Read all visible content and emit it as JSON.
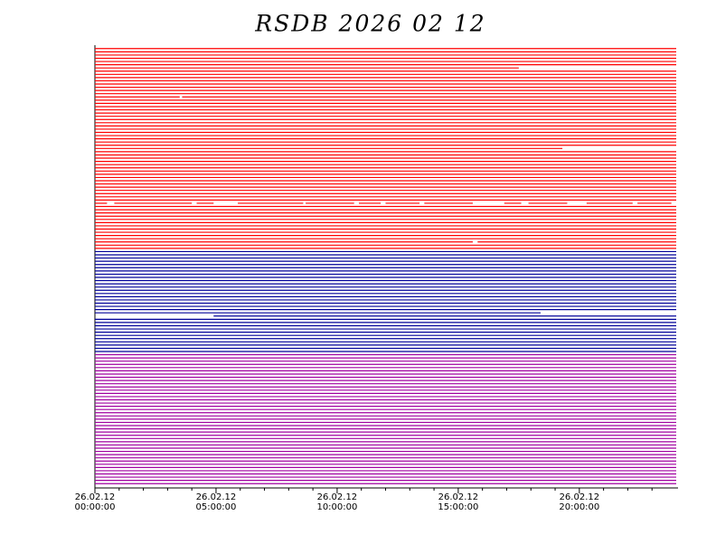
{
  "chart_data": {
    "type": "availability",
    "title": "RSDB  2026  02  12",
    "xlim": [
      0,
      24
    ],
    "xticks": [
      {
        "value": 0,
        "label": "26.02.12 00:00:00"
      },
      {
        "value": 5,
        "label": "26.02.12 05:00:00"
      },
      {
        "value": 10,
        "label": "26.02.12 10:00:00"
      },
      {
        "value": 15,
        "label": "26.02.12 15:00:00"
      },
      {
        "value": 20,
        "label": "26.02.12 20:00:00"
      }
    ],
    "xminorticks": [
      1,
      2,
      3,
      4,
      6,
      7,
      8,
      9,
      11,
      12,
      13,
      14,
      16,
      17,
      18,
      19,
      21,
      22,
      23
    ],
    "groups": [
      {
        "color": "#ff0000",
        "rows": [
          [
            [
              0,
              24
            ]
          ],
          [
            [
              0,
              24
            ]
          ],
          [
            [
              0,
              24
            ]
          ],
          [
            [
              0,
              24
            ]
          ],
          [
            [
              0,
              24
            ]
          ],
          [
            [
              0,
              24
            ]
          ],
          [
            [
              0,
              17.5
            ]
          ],
          [
            [
              0,
              24
            ]
          ],
          [
            [
              0,
              24
            ]
          ],
          [
            [
              0,
              24
            ]
          ],
          [
            [
              0,
              24
            ]
          ],
          [
            [
              0,
              24
            ]
          ],
          [
            [
              0,
              24
            ]
          ],
          [
            [
              0,
              24
            ]
          ],
          [
            [
              0,
              24
            ]
          ],
          [
            [
              0,
              3.5
            ],
            [
              3.6,
              24
            ]
          ],
          [
            [
              0,
              24
            ]
          ],
          [
            [
              0,
              24
            ]
          ],
          [
            [
              0,
              24
            ]
          ],
          [
            [
              0,
              24
            ]
          ],
          [
            [
              0,
              24
            ]
          ],
          [
            [
              0,
              24
            ]
          ],
          [
            [
              0,
              24
            ]
          ],
          [
            [
              0,
              24
            ]
          ],
          [
            [
              0,
              24
            ]
          ],
          [
            [
              0,
              24
            ]
          ],
          [
            [
              0,
              24
            ]
          ],
          [
            [
              0,
              24
            ]
          ],
          [
            [
              0,
              24
            ]
          ],
          [
            [
              0,
              24
            ]
          ],
          [
            [
              0,
              24
            ]
          ],
          [
            [
              0,
              19.3
            ]
          ],
          [
            [
              0,
              24
            ]
          ],
          [
            [
              0,
              24
            ]
          ],
          [
            [
              0,
              24
            ]
          ],
          [
            [
              0,
              24
            ]
          ],
          [
            [
              0,
              24
            ]
          ],
          [
            [
              0,
              24
            ]
          ],
          [
            [
              0,
              24
            ]
          ],
          [
            [
              0,
              24
            ]
          ],
          [
            [
              0,
              24
            ]
          ],
          [
            [
              0,
              24
            ]
          ],
          [
            [
              0,
              24
            ]
          ],
          [
            [
              0,
              24
            ]
          ],
          [
            [
              0,
              24
            ]
          ],
          [
            [
              0,
              24
            ]
          ],
          [
            [
              0,
              24
            ]
          ],
          [
            [
              0,
              24
            ]
          ],
          [
            [
              0,
              0.5
            ],
            [
              0.8,
              4
            ],
            [
              4.2,
              4.9
            ],
            [
              5.9,
              8.6
            ],
            [
              8.7,
              10.7
            ],
            [
              10.9,
              11.8
            ],
            [
              12,
              13.4
            ],
            [
              13.6,
              15.6
            ],
            [
              16.9,
              17.6
            ],
            [
              17.9,
              19.5
            ],
            [
              20.3,
              22.2
            ],
            [
              22.4,
              23.8
            ]
          ],
          [
            [
              0,
              24
            ]
          ],
          [
            [
              0,
              24
            ]
          ],
          [
            [
              0,
              24
            ]
          ],
          [
            [
              0,
              24
            ]
          ],
          [
            [
              0,
              24
            ]
          ],
          [
            [
              0,
              24
            ]
          ],
          [
            [
              0,
              24
            ]
          ],
          [
            [
              0,
              24
            ]
          ],
          [
            [
              0,
              24
            ]
          ],
          [
            [
              0,
              24
            ]
          ],
          [
            [
              0,
              24
            ]
          ],
          [
            [
              0,
              15.6
            ],
            [
              15.8,
              24
            ]
          ],
          [
            [
              0,
              24
            ]
          ],
          [
            [
              0,
              24
            ]
          ]
        ]
      },
      {
        "color": "#000099",
        "rows": [
          [
            [
              0,
              24
            ]
          ],
          [
            [
              0,
              24
            ]
          ],
          [
            [
              0,
              24
            ]
          ],
          [
            [
              0,
              24
            ]
          ],
          [
            [
              0,
              24
            ]
          ],
          [
            [
              0,
              24
            ]
          ],
          [
            [
              0,
              24
            ]
          ],
          [
            [
              0,
              24
            ]
          ],
          [
            [
              0,
              24
            ]
          ],
          [
            [
              0,
              24
            ]
          ],
          [
            [
              0,
              24
            ]
          ],
          [
            [
              0,
              24
            ]
          ],
          [
            [
              0,
              24
            ]
          ],
          [
            [
              0,
              24
            ]
          ],
          [
            [
              0,
              24
            ]
          ],
          [
            [
              0,
              24
            ]
          ],
          [
            [
              0,
              24
            ]
          ],
          [
            [
              0,
              24
            ]
          ],
          [
            [
              0,
              24
            ]
          ],
          [
            [
              0,
              18.4
            ]
          ],
          [
            [
              4.9,
              24
            ]
          ],
          [
            [
              0,
              24
            ]
          ],
          [
            [
              0,
              24
            ]
          ],
          [
            [
              0,
              24
            ]
          ],
          [
            [
              0,
              24
            ]
          ],
          [
            [
              0,
              24
            ]
          ],
          [
            [
              0,
              24
            ]
          ],
          [
            [
              0,
              24
            ]
          ],
          [
            [
              0,
              24
            ]
          ],
          [
            [
              0,
              24
            ]
          ],
          [
            [
              0,
              24
            ]
          ],
          [
            [
              0,
              24
            ]
          ]
        ]
      },
      {
        "color": "#a000a0",
        "rows": [
          [
            [
              0,
              24
            ]
          ],
          [
            [
              0,
              24
            ]
          ],
          [
            [
              0,
              24
            ]
          ],
          [
            [
              0,
              24
            ]
          ],
          [
            [
              0,
              24
            ]
          ],
          [
            [
              0,
              24
            ]
          ],
          [
            [
              0,
              24
            ]
          ],
          [
            [
              0,
              24
            ]
          ],
          [
            [
              0,
              24
            ]
          ],
          [
            [
              0,
              24
            ]
          ],
          [
            [
              0,
              24
            ]
          ],
          [
            [
              0,
              24
            ]
          ],
          [
            [
              0,
              24
            ]
          ],
          [
            [
              0,
              24
            ]
          ],
          [
            [
              0,
              24
            ]
          ],
          [
            [
              0,
              24
            ]
          ],
          [
            [
              0,
              24
            ]
          ],
          [
            [
              0,
              24
            ]
          ],
          [
            [
              0,
              24
            ]
          ],
          [
            [
              0,
              24
            ]
          ],
          [
            [
              0,
              24
            ]
          ],
          [
            [
              0,
              24
            ]
          ],
          [
            [
              0,
              24
            ]
          ],
          [
            [
              0,
              24
            ]
          ],
          [
            [
              0,
              24
            ]
          ],
          [
            [
              0,
              24
            ]
          ],
          [
            [
              0,
              24
            ]
          ],
          [
            [
              0,
              24
            ]
          ],
          [
            [
              0,
              24
            ]
          ],
          [
            [
              0,
              24
            ]
          ],
          [
            [
              0,
              24
            ]
          ],
          [
            [
              0,
              24
            ]
          ],
          [
            [
              0,
              24
            ]
          ],
          [
            [
              0,
              24
            ]
          ],
          [
            [
              0,
              24
            ]
          ],
          [
            [
              0,
              24
            ]
          ],
          [
            [
              0,
              24
            ]
          ],
          [
            [
              0,
              24
            ]
          ],
          [
            [
              0,
              24
            ]
          ],
          [
            [
              0,
              24
            ]
          ],
          [
            [
              0,
              24
            ]
          ]
        ]
      }
    ]
  }
}
